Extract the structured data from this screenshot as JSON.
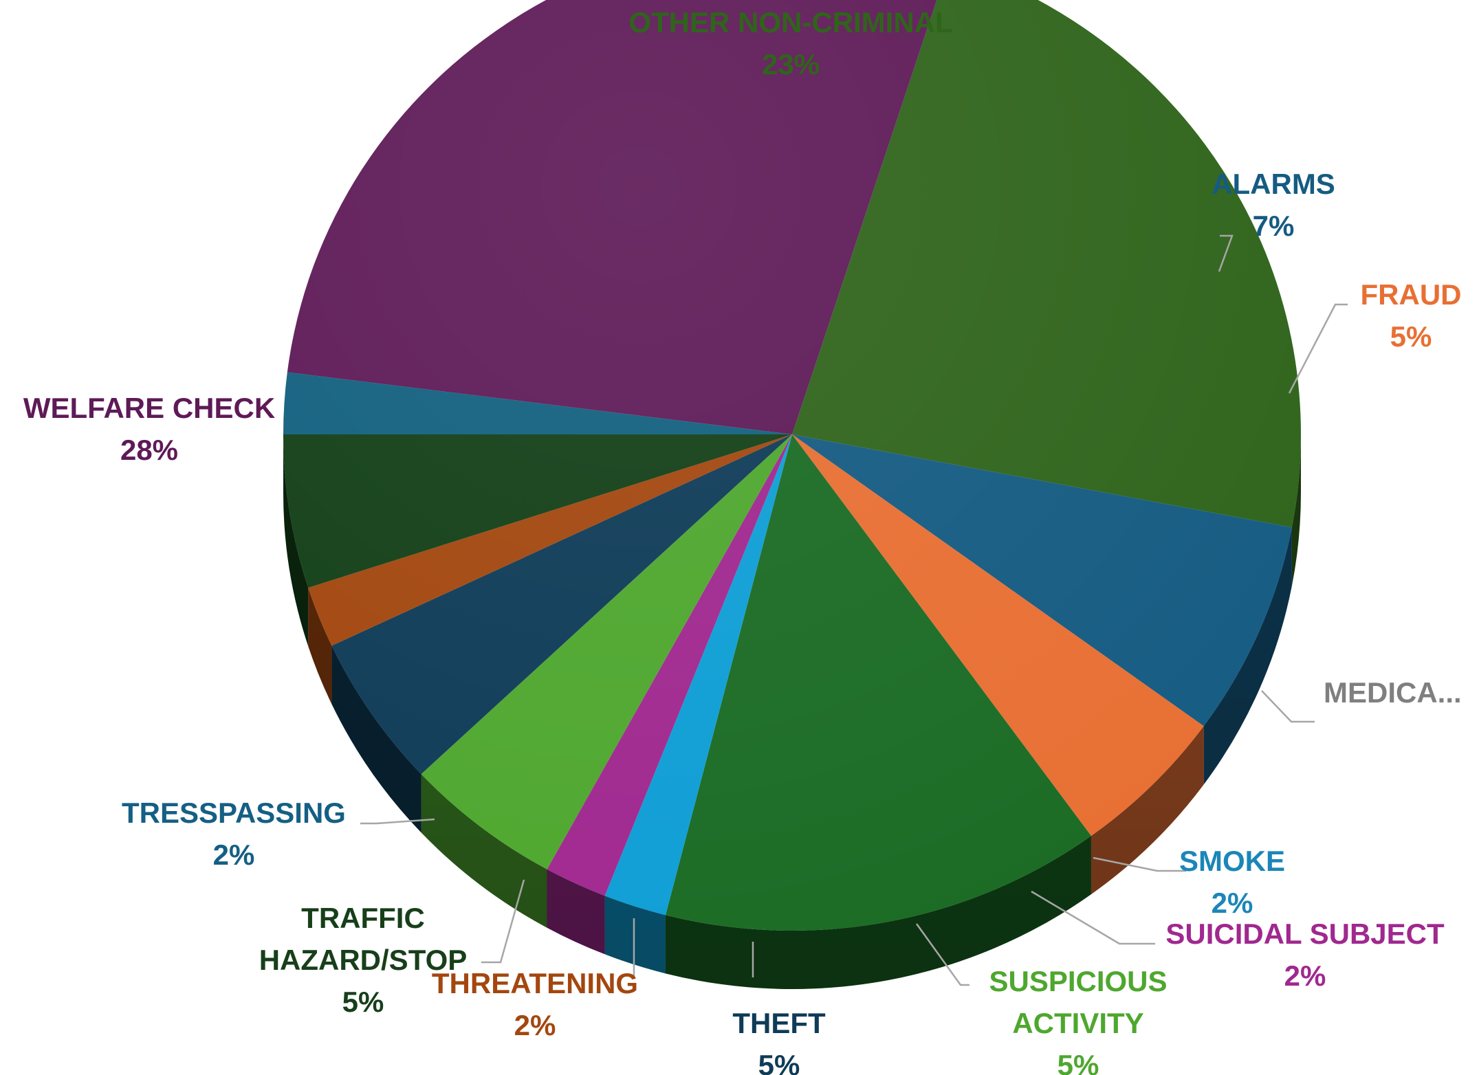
{
  "chart_data": {
    "type": "pie",
    "title": "",
    "legend": "none",
    "slices": [
      {
        "label": "OTHER NON-CRIMINAL",
        "label_lines": [
          "OTHER NON-CRIMINAL"
        ],
        "value": 23,
        "value_label": "23%",
        "color": "#2f641b",
        "label_color": "#2f641b"
      },
      {
        "label": "ALARMS",
        "label_lines": [
          "ALARMS"
        ],
        "value": 7,
        "value_label": "7%",
        "color": "#155b82",
        "label_color": "#155b82"
      },
      {
        "label": "FRAUD",
        "label_lines": [
          "FRAUD"
        ],
        "value": 5,
        "value_label": "5%",
        "color": "#e86f33",
        "label_color": "#e86f33"
      },
      {
        "label": "MEDICA...",
        "label_lines": [
          "MEDICA..."
        ],
        "value": 14,
        "value_label": "",
        "color": "#1a6b24",
        "label_color": "#7f7f7f"
      },
      {
        "label": "SMOKE",
        "label_lines": [
          "SMOKE"
        ],
        "value": 2,
        "value_label": "2%",
        "color": "#0e9ed5",
        "label_color": "#1b86b8"
      },
      {
        "label": "SUICIDAL SUBJECT",
        "label_lines": [
          "SUICIDAL SUBJECT"
        ],
        "value": 2,
        "value_label": "2%",
        "color": "#a0288f",
        "label_color": "#a0288f"
      },
      {
        "label": "SUSPICIOUS ACTIVITY",
        "label_lines": [
          "SUSPICIOUS",
          "ACTIVITY"
        ],
        "value": 5,
        "value_label": "5%",
        "color": "#4ea72e",
        "label_color": "#4ea72e"
      },
      {
        "label": "THEFT",
        "label_lines": [
          "THEFT"
        ],
        "value": 5,
        "value_label": "5%",
        "color": "#0e3b57",
        "label_color": "#0e3b57"
      },
      {
        "label": "THREATENING",
        "label_lines": [
          "THREATENING"
        ],
        "value": 2,
        "value_label": "2%",
        "color": "#a3470f",
        "label_color": "#a3470f"
      },
      {
        "label": "TRAFFIC HAZARD/STOP",
        "label_lines": [
          "TRAFFIC",
          "HAZARD/STOP"
        ],
        "value": 5,
        "value_label": "5%",
        "color": "#123f17",
        "label_color": "#173f1a"
      },
      {
        "label": "TRESSPASSING",
        "label_lines": [
          "TRESSPASSING"
        ],
        "value": 2,
        "value_label": "2%",
        "color": "#12607f",
        "label_color": "#155f84"
      },
      {
        "label": "WELFARE CHECK",
        "label_lines": [
          "WELFARE CHECK"
        ],
        "value": 28,
        "value_label": "28%",
        "color": "#5e1a57",
        "label_color": "#5e1a57"
      }
    ]
  }
}
